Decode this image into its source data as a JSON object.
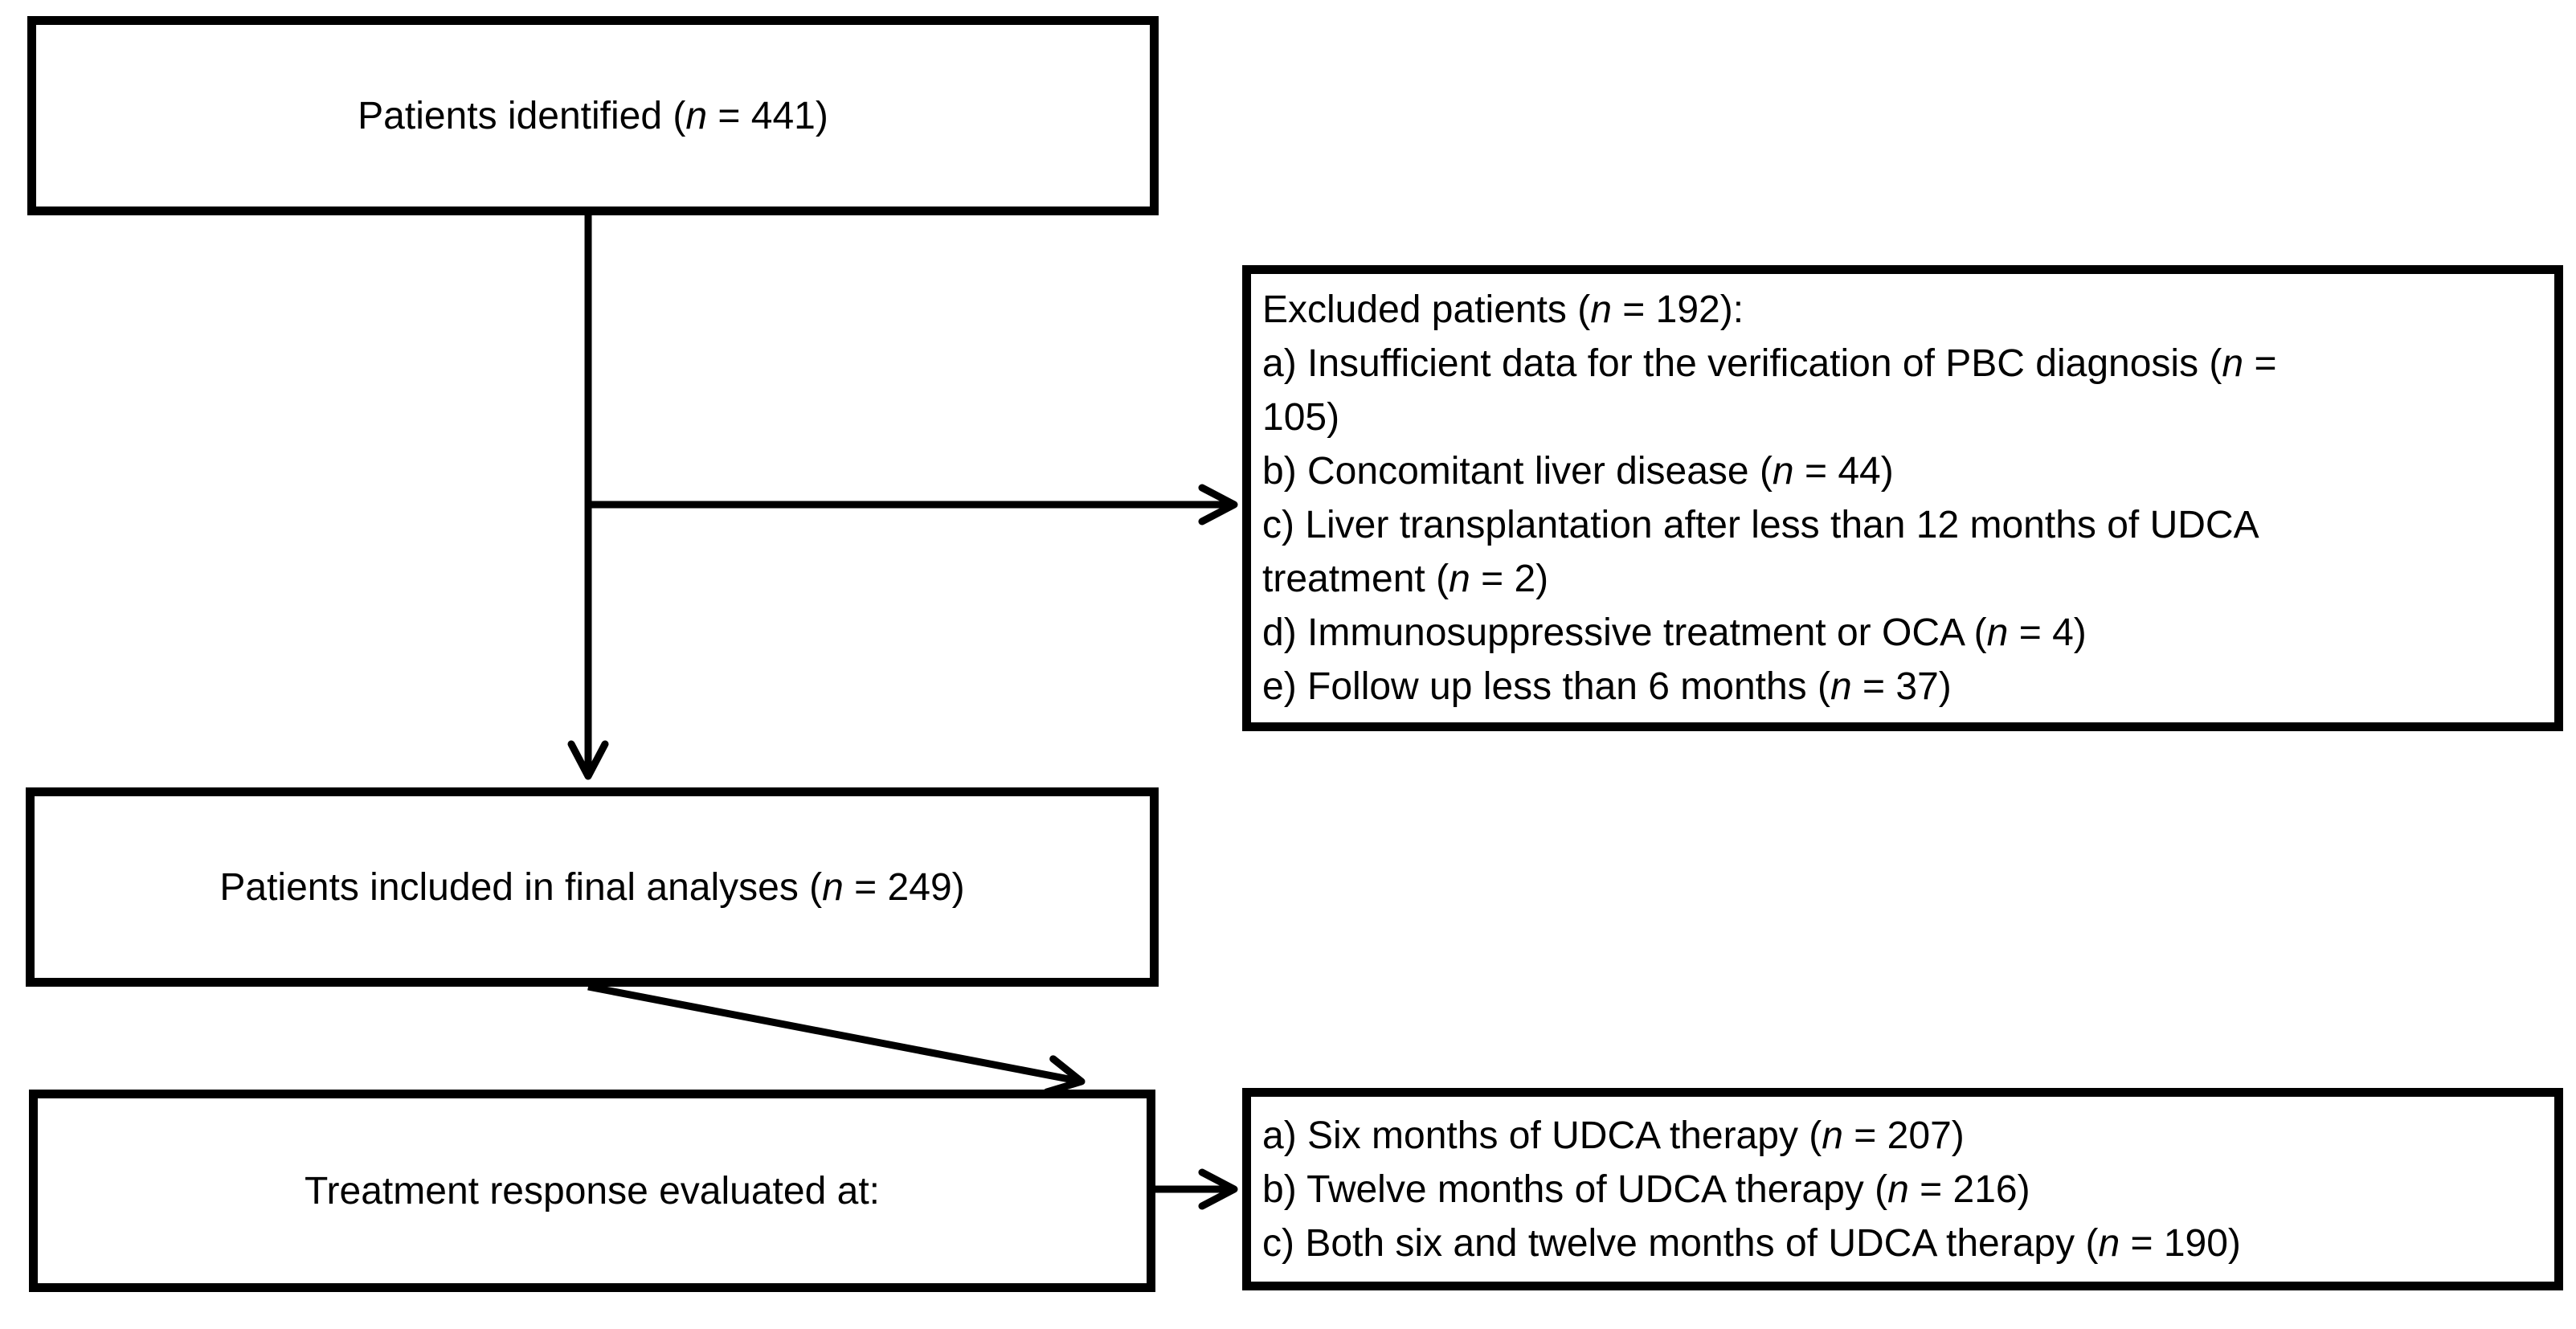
{
  "diagram": {
    "background_color": "#ffffff",
    "line_color": "#000000",
    "boxes": {
      "identified": {
        "label": "Patients identified (n = 441)"
      },
      "excluded": {
        "lines": [
          "Excluded patients (n = 192):",
          "a) Insufficient data for the verification of PBC diagnosis (n =",
          "105)",
          "b) Concomitant liver disease (n = 44)",
          "c) Liver transplantation after less than 12 months of UDCA",
          "treatment (n = 2)",
          "d) Immunosuppressive treatment or OCA (n = 4)",
          "e) Follow up less than 6 months (n = 37)"
        ]
      },
      "included": {
        "label": "Patients included in final analyses (n = 249)"
      },
      "evaluated": {
        "label": "Treatment response evaluated at:"
      },
      "timepoints": {
        "lines": [
          "a) Six months of UDCA therapy (n = 207)",
          "b) Twelve months of UDCA therapy (n = 216)",
          "c) Both six and twelve months of UDCA therapy (n = 190)"
        ]
      }
    }
  }
}
